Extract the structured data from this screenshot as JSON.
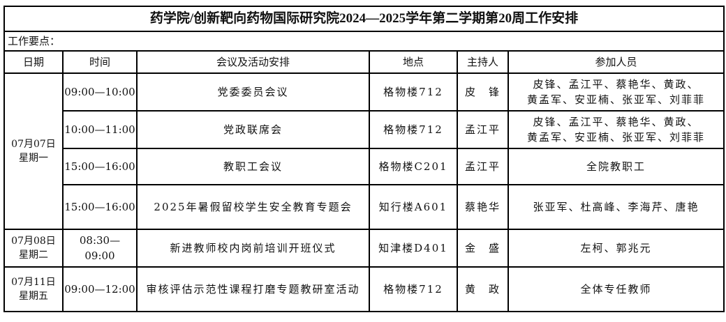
{
  "title": "药学院/创新靶向药物国际研究院2024—2025学年第二学期第20周工作安排",
  "work_points_label": "工作要点：",
  "headers": [
    "日期",
    "时间",
    "会议及活动安排",
    "地点",
    "主持人",
    "参加人员"
  ],
  "days": [
    {
      "date": "07月07日",
      "weekday": "星期一",
      "events": [
        {
          "time": "09:00—10:00",
          "activity": "党委委员会议",
          "place": "格物楼712",
          "host": "皮　锋",
          "attendees": [
            "皮锋、孟江平、蔡艳华、黄政、",
            "黄孟军、安亚楠、张亚军、刘菲菲"
          ]
        },
        {
          "time": "10:00—11:00",
          "activity": "党政联席会",
          "place": "格物楼712",
          "host": "孟江平",
          "attendees": [
            "皮锋、孟江平、蔡艳华、黄政、",
            "黄孟军、安亚楠、张亚军、刘菲菲"
          ]
        },
        {
          "time": "15:00—16:00",
          "activity": "教职工会议",
          "place": "格物楼C201",
          "host": "孟江平",
          "attendees": [
            "全院教职工"
          ]
        },
        {
          "time": "15:00—16:00",
          "activity": "2025年暑假留校学生安全教育专题会",
          "place": "知行楼A601",
          "host": "蔡艳华",
          "attendees": [
            "张亚军、杜高峰、李海芹、唐艳"
          ]
        }
      ]
    },
    {
      "date": "07月08日",
      "weekday": "星期二",
      "events": [
        {
          "time": "08:30— 09:00",
          "activity": "新进教师校内岗前培训开班仪式",
          "place": "知津楼D401",
          "host": "金　盛",
          "attendees": [
            "左柯、郭兆元"
          ]
        }
      ]
    },
    {
      "date": "07月11日",
      "weekday": "星期五",
      "events": [
        {
          "time": "09:00—12:00",
          "activity": "审核评估示范性课程打磨专题教研室活动",
          "place": "格物楼712",
          "host": "黄　政",
          "attendees": [
            "全体专任教师"
          ]
        }
      ]
    }
  ]
}
